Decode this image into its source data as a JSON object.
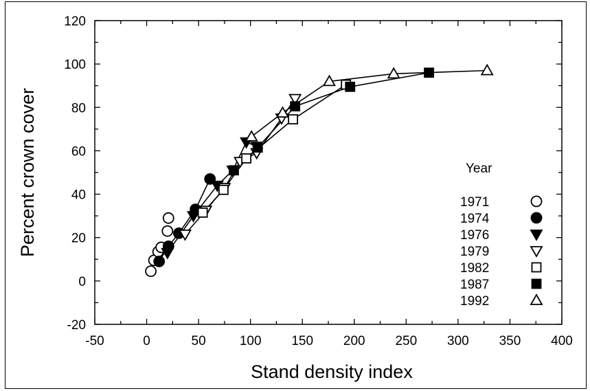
{
  "chart_data": {
    "type": "scatter",
    "title": "",
    "xlabel": "Stand density index",
    "ylabel": "Percent crown cover",
    "xlim": [
      -50,
      400
    ],
    "ylim": [
      -20,
      120
    ],
    "xticks": [
      "-50",
      "0",
      "50",
      "100",
      "150",
      "200",
      "250",
      "300",
      "350",
      "400"
    ],
    "yticks": [
      "-20",
      "0",
      "20",
      "40",
      "60",
      "80",
      "100",
      "120"
    ],
    "grid": false,
    "legend": {
      "title": "Year",
      "position": "right"
    },
    "series": [
      {
        "name": "1971",
        "marker": "circle-open",
        "connected": false,
        "points": [
          [
            4,
            4.5
          ],
          [
            7,
            9.5
          ],
          [
            11,
            13.5
          ],
          [
            14,
            15.5
          ],
          [
            20,
            23
          ],
          [
            21,
            29
          ]
        ]
      },
      {
        "name": "1974",
        "marker": "circle-filled",
        "connected": true,
        "points": [
          [
            12,
            9
          ],
          [
            21,
            16
          ],
          [
            31,
            22
          ],
          [
            47,
            33
          ],
          [
            61,
            47
          ]
        ]
      },
      {
        "name": "1976",
        "marker": "triangle-down-filled",
        "connected": true,
        "points": [
          [
            20,
            13
          ],
          [
            45,
            30
          ],
          [
            68,
            44
          ],
          [
            83,
            51
          ],
          [
            96,
            64
          ],
          [
            106,
            62
          ]
        ]
      },
      {
        "name": "1979",
        "marker": "triangle-down-open",
        "connected": true,
        "points": [
          [
            37,
            21.5
          ],
          [
            57,
            32.5
          ],
          [
            75,
            43
          ],
          [
            90,
            55
          ],
          [
            106,
            59
          ],
          [
            130,
            75
          ],
          [
            143,
            84
          ]
        ]
      },
      {
        "name": "1982",
        "marker": "square-open",
        "connected": true,
        "points": [
          [
            54,
            31.5
          ],
          [
            74,
            42
          ],
          [
            96,
            56.5
          ],
          [
            141,
            74.5
          ],
          [
            192,
            90.5
          ]
        ]
      },
      {
        "name": "1987",
        "marker": "square-filled",
        "connected": true,
        "points": [
          [
            84,
            51
          ],
          [
            107,
            61.5
          ],
          [
            143,
            80.5
          ],
          [
            196,
            89.5
          ],
          [
            272,
            96
          ]
        ]
      },
      {
        "name": "1992",
        "marker": "triangle-up-open",
        "connected": true,
        "points": [
          [
            101,
            66.5
          ],
          [
            131,
            77.5
          ],
          [
            176,
            92
          ],
          [
            238,
            95.5
          ],
          [
            328,
            97
          ]
        ]
      }
    ]
  }
}
